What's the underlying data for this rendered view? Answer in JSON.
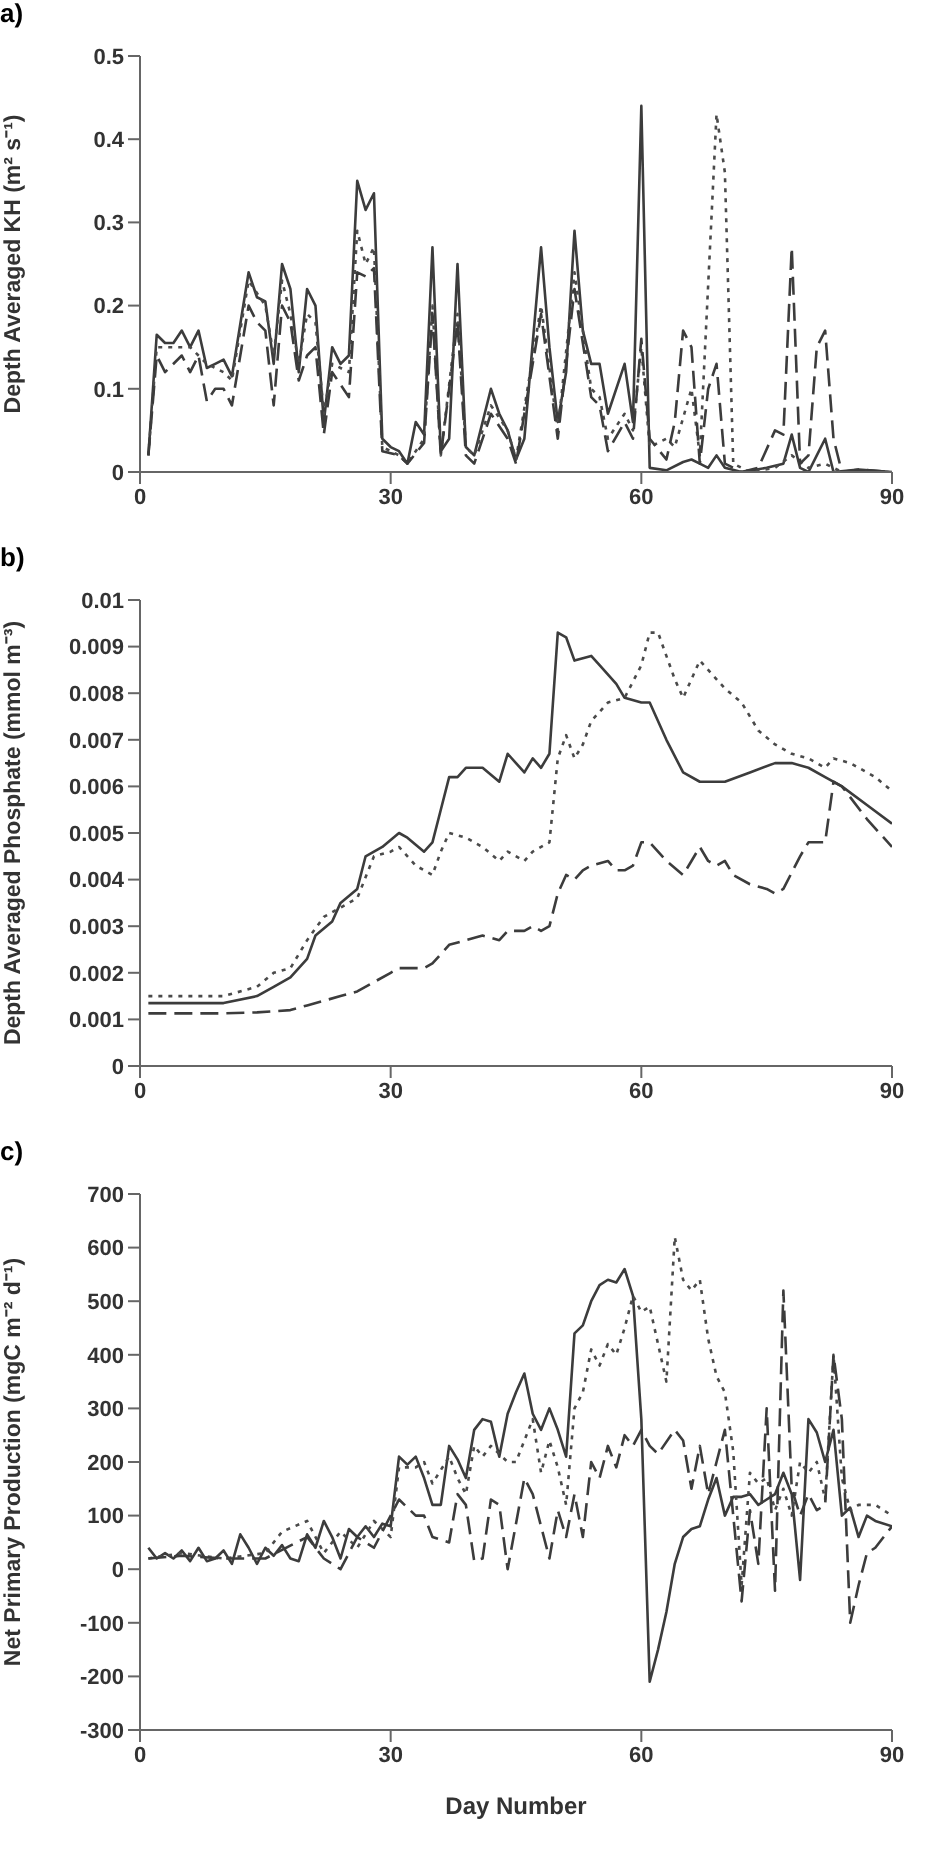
{
  "chart_data": [
    {
      "type": "line",
      "title": "a)",
      "ylabel": "Depth Averaged KH (m² s⁻¹)",
      "xlim": [
        0,
        90
      ],
      "xticks": [
        0,
        30,
        60,
        90
      ],
      "ylim": [
        0,
        0.5
      ],
      "yticks": [
        0,
        0.1,
        0.2,
        0.3,
        0.4,
        0.5
      ],
      "series": [
        {
          "color": "#3c3c3c",
          "line_style": "solid",
          "x": [
            1,
            2,
            3,
            4,
            5,
            6,
            7,
            8,
            9,
            10,
            11,
            13,
            14,
            15,
            16,
            17,
            18,
            19,
            20,
            21,
            22,
            23,
            24,
            25,
            26,
            27,
            28,
            29,
            30,
            31,
            32,
            33,
            34,
            35,
            36,
            37,
            38,
            39,
            40,
            42,
            43,
            44,
            45,
            46,
            48,
            49,
            50,
            51,
            52,
            53,
            54,
            55,
            56,
            58,
            59,
            60,
            61,
            63,
            65,
            66,
            67,
            68,
            69,
            70,
            72,
            75,
            77,
            78,
            79,
            80,
            81,
            82,
            83,
            86,
            90
          ],
          "values": [
            0.02,
            0.165,
            0.155,
            0.155,
            0.17,
            0.15,
            0.17,
            0.125,
            0.13,
            0.135,
            0.115,
            0.24,
            0.21,
            0.205,
            0.13,
            0.25,
            0.22,
            0.12,
            0.22,
            0.2,
            0.06,
            0.15,
            0.13,
            0.14,
            0.35,
            0.315,
            0.335,
            0.04,
            0.03,
            0.025,
            0.01,
            0.06,
            0.045,
            0.27,
            0.025,
            0.04,
            0.25,
            0.03,
            0.02,
            0.1,
            0.07,
            0.05,
            0.015,
            0.04,
            0.27,
            0.15,
            0.06,
            0.12,
            0.29,
            0.17,
            0.13,
            0.13,
            0.07,
            0.13,
            0.06,
            0.44,
            0.005,
            0.002,
            0.012,
            0.015,
            0.01,
            0.005,
            0.02,
            0.005,
            0,
            0.005,
            0.01,
            0.045,
            0.005,
            0,
            0.02,
            0.04,
            0,
            0.003,
            0
          ]
        },
        {
          "color": "#4a4a4a",
          "line_style": "dotted",
          "x": [
            1,
            2,
            4,
            6,
            8,
            10,
            11,
            13,
            15,
            16,
            17,
            18,
            19,
            20,
            21,
            22,
            23,
            25,
            26,
            27,
            28,
            29,
            31,
            32,
            34,
            35,
            36,
            38,
            39,
            40,
            42,
            44,
            45,
            48,
            50,
            52,
            54,
            55,
            56,
            58,
            59,
            60,
            61,
            63,
            64,
            66,
            67,
            69,
            70,
            71,
            73,
            76,
            78,
            80,
            82,
            84,
            90
          ],
          "values": [
            0.02,
            0.15,
            0.15,
            0.15,
            0.13,
            0.12,
            0.11,
            0.23,
            0.2,
            0.14,
            0.23,
            0.19,
            0.13,
            0.19,
            0.18,
            0.07,
            0.13,
            0.12,
            0.29,
            0.25,
            0.27,
            0.03,
            0.02,
            0.01,
            0.04,
            0.2,
            0.02,
            0.19,
            0.03,
            0.02,
            0.08,
            0.05,
            0.015,
            0.2,
            0.05,
            0.24,
            0.1,
            0.09,
            0.04,
            0.07,
            0.05,
            0.15,
            0.03,
            0.04,
            0.03,
            0.1,
            0.02,
            0.43,
            0.36,
            0.01,
            0,
            0.005,
            0.02,
            0.005,
            0.01,
            0,
            0
          ]
        },
        {
          "color": "#3c3c3c",
          "line_style": "dashed",
          "x": [
            1,
            2,
            3,
            5,
            6,
            7,
            8,
            9,
            10,
            11,
            13,
            14,
            15,
            16,
            17,
            18,
            19,
            20,
            21,
            22,
            23,
            25,
            26,
            27,
            28,
            29,
            31,
            32,
            34,
            35,
            36,
            38,
            39,
            40,
            42,
            44,
            45,
            48,
            50,
            52,
            54,
            55,
            56,
            58,
            59,
            60,
            61,
            63,
            64,
            65,
            66,
            67,
            68,
            69,
            70,
            72,
            74,
            76,
            77,
            78,
            79,
            80,
            81,
            82,
            83,
            84,
            86,
            90
          ],
          "values": [
            0.02,
            0.14,
            0.12,
            0.14,
            0.12,
            0.14,
            0.085,
            0.1,
            0.1,
            0.08,
            0.2,
            0.18,
            0.17,
            0.08,
            0.2,
            0.18,
            0.11,
            0.14,
            0.15,
            0.045,
            0.12,
            0.09,
            0.24,
            0.235,
            0.245,
            0.025,
            0.02,
            0.01,
            0.035,
            0.19,
            0.02,
            0.18,
            0.02,
            0.01,
            0.07,
            0.04,
            0.01,
            0.19,
            0.04,
            0.22,
            0.09,
            0.08,
            0.025,
            0.06,
            0.04,
            0.16,
            0.04,
            0.015,
            0.06,
            0.17,
            0.15,
            0.01,
            0.1,
            0.13,
            0.01,
            0,
            0.005,
            0.05,
            0.045,
            0.27,
            0.01,
            0.02,
            0.15,
            0.17,
            0.04,
            0,
            0.003,
            0
          ]
        }
      ]
    },
    {
      "type": "line",
      "title": "b)",
      "ylabel": "Depth Averaged Phosphate (mmol m⁻³)",
      "xlim": [
        0,
        90
      ],
      "xticks": [
        0,
        30,
        60,
        90
      ],
      "ylim": [
        0,
        0.01
      ],
      "yticks": [
        0,
        0.001,
        0.002,
        0.003,
        0.004,
        0.005,
        0.006,
        0.007,
        0.008,
        0.009,
        0.01
      ],
      "series": [
        {
          "color": "#3c3c3c",
          "line_style": "solid",
          "x": [
            1,
            10,
            14,
            16,
            18,
            20,
            21,
            23,
            24,
            26,
            27,
            29,
            31,
            32,
            34,
            35,
            36,
            37,
            38,
            39,
            41,
            43,
            44,
            45,
            46,
            47,
            48,
            49,
            50,
            51,
            52,
            54,
            55,
            57,
            58,
            60,
            61,
            63,
            65,
            67,
            70,
            73,
            76,
            78,
            80,
            82,
            84,
            87,
            90
          ],
          "values": [
            0.00135,
            0.00135,
            0.0015,
            0.0017,
            0.0019,
            0.0023,
            0.0028,
            0.0031,
            0.0035,
            0.0038,
            0.0045,
            0.0047,
            0.005,
            0.0049,
            0.0046,
            0.0048,
            0.0055,
            0.0062,
            0.0062,
            0.0064,
            0.0064,
            0.0061,
            0.0067,
            0.0065,
            0.0063,
            0.0066,
            0.0064,
            0.0067,
            0.0093,
            0.0092,
            0.0087,
            0.0088,
            0.0086,
            0.0082,
            0.0079,
            0.0078,
            0.0078,
            0.007,
            0.0063,
            0.0061,
            0.0061,
            0.0063,
            0.0065,
            0.0065,
            0.0064,
            0.0062,
            0.006,
            0.0056,
            0.0052
          ]
        },
        {
          "color": "#4a4a4a",
          "line_style": "dotted",
          "x": [
            1,
            10,
            14,
            16,
            18,
            20,
            22,
            24,
            26,
            28,
            30,
            31,
            33,
            35,
            36,
            37,
            39,
            41,
            43,
            44,
            46,
            47,
            49,
            50,
            51,
            52,
            53,
            54,
            56,
            58,
            60,
            61,
            62,
            64,
            65,
            67,
            68,
            70,
            72,
            74,
            76,
            78,
            80,
            82,
            83,
            85,
            88,
            90
          ],
          "values": [
            0.0015,
            0.0015,
            0.0017,
            0.002,
            0.0021,
            0.0027,
            0.0032,
            0.0034,
            0.0036,
            0.0045,
            0.0046,
            0.0047,
            0.0043,
            0.0041,
            0.0046,
            0.005,
            0.0049,
            0.0047,
            0.0044,
            0.0046,
            0.0044,
            0.0046,
            0.0048,
            0.0066,
            0.0071,
            0.0066,
            0.0069,
            0.0074,
            0.0078,
            0.0079,
            0.0086,
            0.0093,
            0.0093,
            0.0083,
            0.0079,
            0.0087,
            0.0085,
            0.0081,
            0.0078,
            0.0072,
            0.0069,
            0.0067,
            0.0066,
            0.0064,
            0.0066,
            0.0065,
            0.0062,
            0.0059
          ]
        },
        {
          "color": "#3c3c3c",
          "line_style": "dashed",
          "x": [
            1,
            10,
            14,
            18,
            20,
            22,
            24,
            26,
            28,
            30,
            31,
            34,
            35,
            36,
            37,
            39,
            41,
            43,
            44,
            46,
            47,
            48,
            49,
            50,
            51,
            52,
            53,
            54,
            56,
            57,
            58,
            59,
            60,
            61,
            63,
            65,
            66,
            67,
            68,
            69,
            70,
            71,
            73,
            75,
            76,
            77,
            79,
            80,
            82,
            83,
            84,
            87,
            90
          ],
          "values": [
            0.00113,
            0.00113,
            0.00115,
            0.0012,
            0.0013,
            0.0014,
            0.0015,
            0.0016,
            0.0018,
            0.002,
            0.0021,
            0.0021,
            0.0022,
            0.0024,
            0.0026,
            0.0027,
            0.0028,
            0.0027,
            0.0029,
            0.0029,
            0.003,
            0.0029,
            0.003,
            0.0037,
            0.0041,
            0.004,
            0.0042,
            0.0043,
            0.0044,
            0.0042,
            0.0042,
            0.0043,
            0.0048,
            0.0048,
            0.0044,
            0.0041,
            0.0044,
            0.0047,
            0.0044,
            0.0043,
            0.0044,
            0.0041,
            0.0039,
            0.0038,
            0.0037,
            0.0038,
            0.0045,
            0.0048,
            0.0048,
            0.0061,
            0.006,
            0.0053,
            0.0047
          ]
        }
      ]
    },
    {
      "type": "line",
      "title": "c)",
      "xlabel": "Day Number",
      "ylabel": "Net Primary Production (mgC m⁻² d⁻¹)",
      "xlim": [
        0,
        90
      ],
      "xticks": [
        0,
        30,
        60,
        90
      ],
      "ylim": [
        -300,
        700
      ],
      "yticks": [
        -300,
        -200,
        -100,
        0,
        100,
        200,
        300,
        400,
        500,
        600,
        700
      ],
      "series": [
        {
          "color": "#3c3c3c",
          "line_style": "solid",
          "x": [
            1,
            2,
            3,
            4,
            5,
            6,
            7,
            8,
            9,
            10,
            11,
            12,
            13,
            14,
            15,
            16,
            17,
            18,
            19,
            20,
            21,
            22,
            23,
            24,
            25,
            26,
            27,
            28,
            29,
            30,
            31,
            32,
            33,
            34,
            35,
            36,
            37,
            38,
            39,
            40,
            41,
            42,
            43,
            44,
            45,
            46,
            47,
            48,
            49,
            50,
            51,
            52,
            53,
            54,
            55,
            56,
            57,
            58,
            59,
            60,
            61,
            62,
            63,
            64,
            65,
            66,
            67,
            68,
            69,
            70,
            71,
            72,
            73,
            74,
            75,
            76,
            77,
            78,
            79,
            80,
            81,
            82,
            83,
            84,
            85,
            86,
            87,
            88,
            90
          ],
          "values": [
            40,
            20,
            30,
            20,
            35,
            15,
            40,
            15,
            20,
            35,
            10,
            65,
            40,
            10,
            40,
            25,
            45,
            20,
            15,
            65,
            40,
            90,
            60,
            20,
            75,
            60,
            80,
            60,
            85,
            80,
            210,
            195,
            210,
            170,
            120,
            120,
            230,
            205,
            170,
            260,
            280,
            275,
            210,
            290,
            330,
            365,
            290,
            260,
            300,
            260,
            210,
            440,
            455,
            500,
            530,
            540,
            535,
            560,
            510,
            280,
            -210,
            -150,
            -80,
            10,
            60,
            75,
            80,
            130,
            170,
            100,
            135,
            135,
            140,
            120,
            130,
            140,
            180,
            140,
            -20,
            280,
            255,
            200,
            260,
            100,
            115,
            60,
            100,
            90,
            80
          ]
        },
        {
          "color": "#4a4a4a",
          "line_style": "dotted",
          "x": [
            1,
            5,
            10,
            15,
            17,
            20,
            22,
            24,
            26,
            28,
            30,
            31,
            33,
            34,
            35,
            37,
            38,
            39,
            40,
            41,
            42,
            44,
            45,
            46,
            47,
            48,
            49,
            50,
            51,
            52,
            53,
            54,
            55,
            56,
            57,
            58,
            59,
            60,
            61,
            62,
            63,
            64,
            65,
            66,
            67,
            68,
            69,
            70,
            71,
            72,
            73,
            74,
            75,
            76,
            77,
            78,
            79,
            80,
            81,
            82,
            83,
            84,
            85,
            86,
            88,
            90
          ],
          "values": [
            20,
            30,
            20,
            30,
            70,
            90,
            30,
            70,
            40,
            90,
            60,
            190,
            190,
            200,
            160,
            210,
            170,
            140,
            230,
            210,
            230,
            200,
            200,
            240,
            280,
            180,
            240,
            190,
            120,
            300,
            330,
            410,
            380,
            420,
            400,
            450,
            510,
            480,
            490,
            420,
            350,
            620,
            540,
            520,
            540,
            430,
            360,
            330,
            220,
            -30,
            180,
            160,
            170,
            110,
            150,
            100,
            200,
            180,
            200,
            130,
            400,
            170,
            110,
            120,
            120,
            100
          ]
        },
        {
          "color": "#3c3c3c",
          "line_style": "dashed",
          "x": [
            1,
            5,
            10,
            15,
            20,
            22,
            24,
            26,
            28,
            30,
            31,
            33,
            34,
            35,
            37,
            38,
            39,
            40,
            41,
            42,
            43,
            44,
            46,
            47,
            48,
            49,
            50,
            51,
            52,
            53,
            54,
            55,
            56,
            57,
            58,
            59,
            60,
            61,
            62,
            64,
            65,
            66,
            67,
            68,
            69,
            70,
            71,
            72,
            73,
            74,
            75,
            76,
            77,
            78,
            79,
            80,
            81,
            82,
            83,
            84,
            85,
            86,
            87,
            88,
            90
          ],
          "values": [
            20,
            25,
            20,
            20,
            60,
            20,
            0,
            60,
            40,
            100,
            130,
            100,
            100,
            60,
            50,
            140,
            120,
            15,
            20,
            130,
            120,
            0,
            170,
            140,
            80,
            20,
            110,
            60,
            140,
            60,
            200,
            170,
            230,
            190,
            250,
            230,
            260,
            230,
            215,
            260,
            240,
            150,
            230,
            140,
            200,
            260,
            100,
            -60,
            110,
            10,
            300,
            -40,
            520,
            150,
            100,
            140,
            110,
            120,
            400,
            280,
            -100,
            -30,
            30,
            40,
            80
          ]
        }
      ]
    }
  ]
}
